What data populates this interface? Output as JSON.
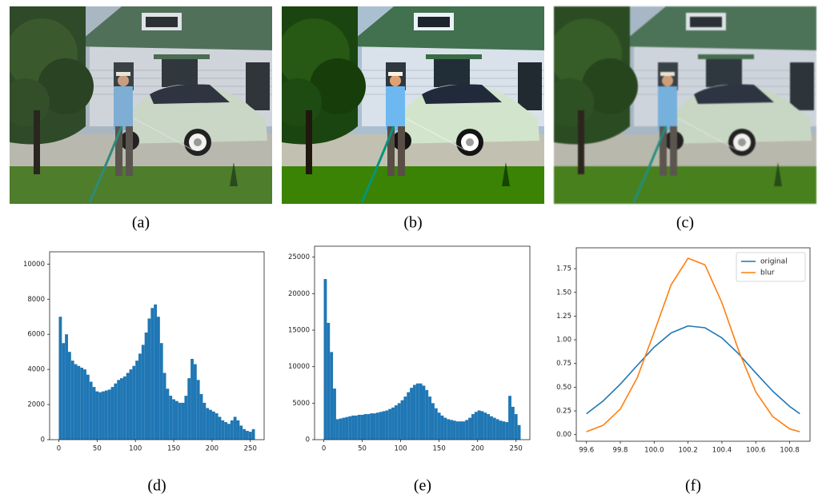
{
  "panel_labels": [
    "(a)",
    "(b)",
    "(c)",
    "(d)",
    "(e)",
    "(f)"
  ],
  "chart_data": [
    {
      "type": "histogram",
      "color": "#1f77b4",
      "bins": [
        0,
        4,
        8,
        12,
        16,
        20,
        24,
        28,
        32,
        36,
        40,
        44,
        48,
        52,
        56,
        60,
        64,
        68,
        72,
        76,
        80,
        84,
        88,
        92,
        96,
        100,
        104,
        108,
        112,
        116,
        120,
        124,
        128,
        132,
        136,
        140,
        144,
        148,
        152,
        156,
        160,
        164,
        168,
        172,
        176,
        180,
        184,
        188,
        192,
        196,
        200,
        204,
        208,
        212,
        216,
        220,
        224,
        228,
        232,
        236,
        240,
        244,
        248,
        252,
        256
      ],
      "values": [
        7000,
        5500,
        6000,
        5000,
        4500,
        4300,
        4200,
        4100,
        4000,
        3700,
        3300,
        3000,
        2750,
        2700,
        2750,
        2800,
        2850,
        3000,
        3200,
        3400,
        3500,
        3600,
        3800,
        4000,
        4200,
        4500,
        4900,
        5400,
        6100,
        6900,
        7500,
        7700,
        7000,
        5500,
        3800,
        2900,
        2500,
        2300,
        2200,
        2100,
        2100,
        2500,
        3500,
        4600,
        4300,
        3400,
        2600,
        2100,
        1800,
        1700,
        1600,
        1500,
        1300,
        1100,
        1000,
        900,
        1100,
        1300,
        1100,
        800,
        600,
        500,
        450,
        600
      ],
      "xlim": [
        -12,
        268
      ],
      "ylim": [
        0,
        10700
      ],
      "xticks": [
        0,
        50,
        100,
        150,
        200,
        250
      ],
      "yticks": [
        0,
        2000,
        4000,
        6000,
        8000,
        10000
      ]
    },
    {
      "type": "histogram",
      "color": "#1f77b4",
      "bins": [
        0,
        4,
        8,
        12,
        16,
        20,
        24,
        28,
        32,
        36,
        40,
        44,
        48,
        52,
        56,
        60,
        64,
        68,
        72,
        76,
        80,
        84,
        88,
        92,
        96,
        100,
        104,
        108,
        112,
        116,
        120,
        124,
        128,
        132,
        136,
        140,
        144,
        148,
        152,
        156,
        160,
        164,
        168,
        172,
        176,
        180,
        184,
        188,
        192,
        196,
        200,
        204,
        208,
        212,
        216,
        220,
        224,
        228,
        232,
        236,
        240,
        244,
        248,
        252,
        256
      ],
      "values": [
        22000,
        16000,
        12000,
        7000,
        2800,
        2900,
        3000,
        3100,
        3200,
        3300,
        3300,
        3400,
        3400,
        3500,
        3500,
        3600,
        3600,
        3700,
        3800,
        3900,
        4000,
        4200,
        4400,
        4700,
        5000,
        5400,
        5900,
        6500,
        7100,
        7500,
        7700,
        7700,
        7400,
        6800,
        5900,
        5000,
        4300,
        3700,
        3300,
        3000,
        2800,
        2700,
        2600,
        2500,
        2500,
        2500,
        2700,
        3000,
        3500,
        3800,
        4000,
        3900,
        3700,
        3500,
        3200,
        3000,
        2800,
        2600,
        2500,
        2400,
        6000,
        4500,
        3500,
        2000
      ],
      "xlim": [
        -12,
        268
      ],
      "ylim": [
        0,
        26500
      ],
      "xticks": [
        0,
        50,
        100,
        150,
        200,
        250
      ],
      "yticks": [
        0,
        5000,
        10000,
        15000,
        20000,
        25000
      ]
    },
    {
      "type": "line",
      "legend": "upper right",
      "x": [
        99.6,
        99.7,
        99.8,
        99.9,
        100.0,
        100.1,
        100.2,
        100.3,
        100.4,
        100.5,
        100.6,
        100.7,
        100.8,
        100.86
      ],
      "series": [
        {
          "name": "original",
          "color": "#1f77b4",
          "values": [
            0.22,
            0.357,
            0.532,
            0.73,
            0.923,
            1.072,
            1.146,
            1.127,
            1.02,
            0.849,
            0.65,
            0.458,
            0.297,
            0.22
          ]
        },
        {
          "name": "blur",
          "color": "#ff7f0e",
          "values": [
            0.03,
            0.1,
            0.27,
            0.6,
            1.08,
            1.58,
            1.86,
            1.79,
            1.39,
            0.88,
            0.45,
            0.19,
            0.06,
            0.03
          ]
        }
      ],
      "xlim": [
        99.54,
        100.92
      ],
      "ylim": [
        -0.07,
        1.97
      ],
      "xticks": [
        99.6,
        99.8,
        {
          "value": 100.0,
          "label": "100.0"
        },
        100.2,
        100.4,
        100.6,
        100.8
      ],
      "yticks": [
        {
          "value": 0,
          "label": "0.00"
        },
        {
          "value": 0.25,
          "label": "0.25"
        },
        {
          "value": 0.5,
          "label": "0.50"
        },
        {
          "value": 0.75,
          "label": "0.75"
        },
        {
          "value": 1,
          "label": "1.00"
        },
        {
          "value": 1.25,
          "label": "1.25"
        },
        {
          "value": 1.5,
          "label": "1.50"
        },
        {
          "value": 1.75,
          "label": "1.75"
        }
      ]
    }
  ]
}
